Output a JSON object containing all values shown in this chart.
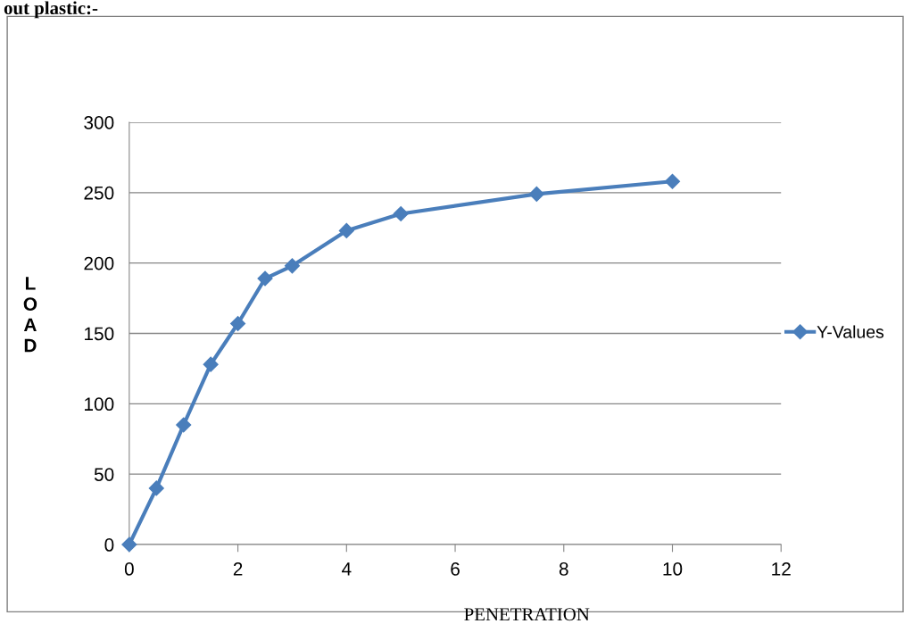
{
  "chart_data": {
    "type": "line",
    "xlabel": "PENETRATION",
    "ylabel": "LOAD",
    "annotations": [
      "out plastic:-"
    ],
    "x": [
      0,
      0.5,
      1,
      1.5,
      2,
      2.5,
      3,
      4,
      5,
      7.5,
      10
    ],
    "series": [
      {
        "name": "Y-Values",
        "color": "#4a7ebb",
        "values": [
          0,
          40,
          85,
          128,
          157,
          189,
          198,
          223,
          235,
          249,
          258
        ]
      }
    ],
    "xlim": [
      0,
      12
    ],
    "xticks": [
      0,
      2,
      4,
      6,
      8,
      10,
      12
    ],
    "ylim": [
      0,
      300
    ],
    "yticks": [
      0,
      50,
      100,
      150,
      200,
      250,
      300
    ],
    "grid": "y",
    "legend": "right",
    "marker": "diamond",
    "line_style": "solid"
  }
}
